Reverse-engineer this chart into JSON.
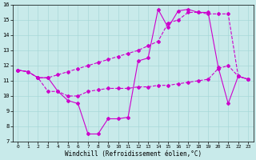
{
  "xlabel": "Windchill (Refroidissement éolien,°C)",
  "background_color": "#c8eaea",
  "grid_color": "#a8d8d8",
  "line_color": "#cc00cc",
  "xlim": [
    -0.5,
    23.5
  ],
  "ylim": [
    7,
    16
  ],
  "yticks": [
    7,
    8,
    9,
    10,
    11,
    12,
    13,
    14,
    15,
    16
  ],
  "xticks": [
    0,
    1,
    2,
    3,
    4,
    5,
    6,
    7,
    8,
    9,
    10,
    11,
    12,
    13,
    14,
    15,
    16,
    17,
    18,
    19,
    20,
    21,
    22,
    23
  ],
  "series": [
    {
      "x": [
        0,
        1,
        2,
        3,
        4,
        5,
        6,
        7,
        8,
        9,
        10,
        11,
        12,
        13,
        14,
        15,
        16,
        17,
        18,
        19,
        20,
        21,
        22,
        23
      ],
      "y": [
        11.7,
        11.6,
        11.2,
        11.2,
        10.3,
        9.7,
        9.5,
        7.5,
        7.5,
        8.5,
        8.5,
        8.6,
        12.3,
        12.5,
        15.7,
        14.5,
        15.6,
        15.7,
        15.5,
        15.5,
        11.9,
        9.5,
        11.3,
        11.1
      ]
    },
    {
      "x": [
        0,
        1,
        2,
        3,
        4,
        5,
        6,
        7,
        8,
        9,
        10,
        11,
        12,
        13,
        14,
        15,
        16,
        17,
        18,
        19,
        20,
        21,
        22,
        23
      ],
      "y": [
        11.7,
        11.6,
        11.2,
        11.2,
        11.4,
        11.6,
        11.8,
        12.0,
        12.2,
        12.4,
        12.6,
        12.8,
        13.0,
        13.3,
        13.6,
        14.8,
        15.0,
        15.5,
        15.5,
        15.4,
        15.4,
        15.4,
        11.3,
        11.1
      ]
    },
    {
      "x": [
        0,
        1,
        2,
        3,
        4,
        5,
        6,
        7,
        8,
        9,
        10,
        11,
        12,
        13,
        14,
        15,
        16,
        17,
        18,
        19,
        20,
        21,
        22,
        23
      ],
      "y": [
        11.7,
        11.6,
        11.2,
        10.3,
        10.3,
        10.0,
        10.0,
        10.3,
        10.4,
        10.5,
        10.5,
        10.5,
        10.6,
        10.6,
        10.7,
        10.7,
        10.8,
        10.9,
        11.0,
        11.1,
        11.8,
        12.0,
        11.3,
        11.1
      ]
    }
  ]
}
